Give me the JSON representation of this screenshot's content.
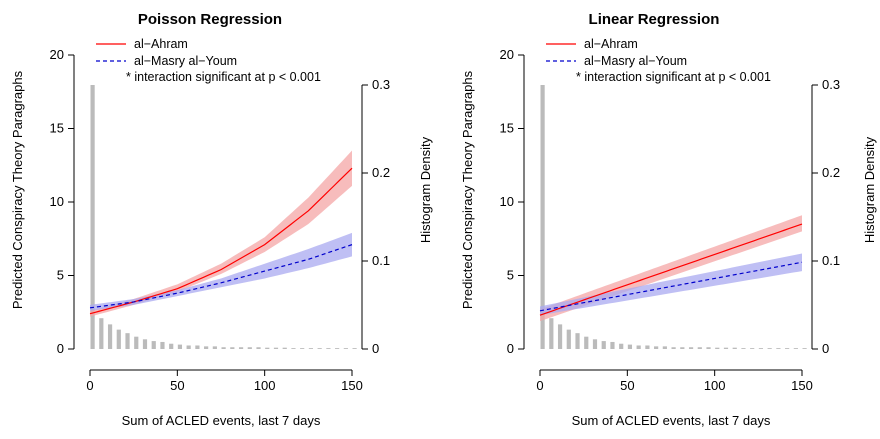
{
  "chart_data": [
    {
      "type": "line",
      "title": "Poisson Regression",
      "xlabel": "Sum of ACLED events, last 7 days",
      "ylabel": "Predicted Conspiracy Theory Paragraphs",
      "y2label": "Histogram Density",
      "xlim": [
        0,
        150
      ],
      "ylim": [
        0,
        20
      ],
      "y2lim": [
        0,
        0.3
      ],
      "xticks": [
        "0",
        "50",
        "100",
        "150"
      ],
      "yticks": [
        "0",
        "5",
        "10",
        "15",
        "20"
      ],
      "y2ticks": [
        "0",
        "0.1",
        "0.2",
        "0.3"
      ],
      "legend_position": "top-left",
      "note": "* interaction significant at p < 0.001",
      "series": [
        {
          "name": "al−Ahram",
          "color": "#ff0000",
          "dash": "solid",
          "band_color": "#f4a6a6",
          "x": [
            0,
            25,
            50,
            75,
            100,
            125,
            150
          ],
          "y": [
            2.4,
            3.2,
            4.1,
            5.4,
            7.1,
            9.4,
            12.3
          ],
          "lower": [
            2.2,
            3.0,
            3.9,
            5.1,
            6.6,
            8.5,
            11.1
          ],
          "upper": [
            2.6,
            3.4,
            4.4,
            5.8,
            7.6,
            10.3,
            13.5
          ]
        },
        {
          "name": "al−Masry al−Youm",
          "color": "#0000cc",
          "dash": "dashed",
          "band_color": "#aaaaf0",
          "x": [
            0,
            25,
            50,
            75,
            100,
            125,
            150
          ],
          "y": [
            2.8,
            3.2,
            3.8,
            4.5,
            5.3,
            6.1,
            7.1
          ],
          "lower": [
            2.6,
            3.0,
            3.6,
            4.2,
            4.8,
            5.5,
            6.3
          ],
          "upper": [
            3.0,
            3.4,
            4.0,
            4.8,
            5.8,
            6.8,
            7.9
          ]
        }
      ],
      "histogram": {
        "color": "#bbbbbb",
        "x": [
          0,
          5,
          10,
          15,
          20,
          25,
          30,
          35,
          40,
          45,
          50,
          55,
          60,
          65,
          70,
          75,
          80,
          85,
          90,
          95,
          100,
          105,
          110,
          115,
          120,
          125,
          130,
          135,
          140,
          145,
          150
        ],
        "density": [
          0.3,
          0.035,
          0.028,
          0.022,
          0.018,
          0.014,
          0.011,
          0.009,
          0.008,
          0.006,
          0.005,
          0.004,
          0.004,
          0.003,
          0.003,
          0.002,
          0.002,
          0.002,
          0.002,
          0.002,
          0.0015,
          0.0015,
          0.0015,
          0.001,
          0.001,
          0.001,
          0.001,
          0.001,
          0.001,
          0.001,
          0.001
        ]
      }
    },
    {
      "type": "line",
      "title": "Linear Regression",
      "xlabel": "Sum of ACLED events, last 7 days",
      "ylabel": "Predicted Conspiracy Theory Paragraphs",
      "y2label": "Histogram Density",
      "xlim": [
        0,
        150
      ],
      "ylim": [
        0,
        20
      ],
      "y2lim": [
        0,
        0.3
      ],
      "xticks": [
        "0",
        "50",
        "100",
        "150"
      ],
      "yticks": [
        "0",
        "5",
        "10",
        "15",
        "20"
      ],
      "y2ticks": [
        "0",
        "0.1",
        "0.2",
        "0.3"
      ],
      "legend_position": "top-left",
      "note": "* interaction significant at p < 0.001",
      "series": [
        {
          "name": "al−Ahram",
          "color": "#ff0000",
          "dash": "solid",
          "band_color": "#f4a6a6",
          "x": [
            0,
            150
          ],
          "y": [
            2.3,
            8.5
          ],
          "lower": [
            1.9,
            8.0
          ],
          "upper": [
            2.7,
            9.1
          ]
        },
        {
          "name": "al−Masry al−Youm",
          "color": "#0000cc",
          "dash": "dashed",
          "band_color": "#aaaaf0",
          "x": [
            0,
            150
          ],
          "y": [
            2.6,
            5.9
          ],
          "lower": [
            2.3,
            5.3
          ],
          "upper": [
            2.9,
            6.5
          ]
        }
      ],
      "histogram": {
        "color": "#bbbbbb",
        "x": [
          0,
          5,
          10,
          15,
          20,
          25,
          30,
          35,
          40,
          45,
          50,
          55,
          60,
          65,
          70,
          75,
          80,
          85,
          90,
          95,
          100,
          105,
          110,
          115,
          120,
          125,
          130,
          135,
          140,
          145,
          150
        ],
        "density": [
          0.3,
          0.035,
          0.028,
          0.022,
          0.018,
          0.014,
          0.011,
          0.009,
          0.008,
          0.006,
          0.005,
          0.004,
          0.004,
          0.003,
          0.003,
          0.002,
          0.002,
          0.002,
          0.002,
          0.002,
          0.0015,
          0.0015,
          0.0015,
          0.001,
          0.001,
          0.001,
          0.001,
          0.001,
          0.001,
          0.001,
          0.001
        ]
      }
    }
  ]
}
